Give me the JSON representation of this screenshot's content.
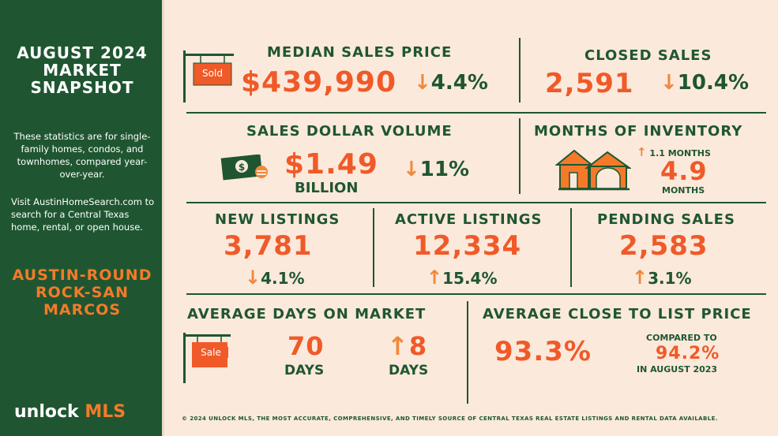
{
  "sidebar": {
    "title": "AUGUST 2024 MARKET SNAPSHOT",
    "description": "These statistics are for single-family homes, condos, and townhomes, compared year-over-year.",
    "visit": "Visit AustinHomeSearch.com to search for a Central Texas home, rental, or open house.",
    "area": "AUSTIN-ROUND ROCK-SAN MARCOS",
    "logo_unlock": "unlock",
    "logo_mls": "MLS"
  },
  "median": {
    "label": "MEDIAN SALES PRICE",
    "value": "$439,990",
    "change": "4.4%",
    "sign": "Sold",
    "direction": "down"
  },
  "closed": {
    "label": "CLOSED SALES",
    "value": "2,591",
    "change": "10.4%",
    "direction": "down"
  },
  "volume": {
    "label": "SALES DOLLAR VOLUME",
    "value": "$1.49",
    "unit": "BILLION",
    "change": "11%",
    "direction": "down"
  },
  "inventory": {
    "label": "MONTHS OF INVENTORY",
    "change": "1.1 MONTHS",
    "value": "4.9",
    "unit": "MONTHS",
    "direction": "up"
  },
  "new_listings": {
    "label": "NEW LISTINGS",
    "value": "3,781",
    "change": "4.1%",
    "direction": "down"
  },
  "active_listings": {
    "label": "ACTIVE LISTINGS",
    "value": "12,334",
    "change": "15.4%",
    "direction": "up"
  },
  "pending": {
    "label": "PENDING SALES",
    "value": "2,583",
    "change": "3.1%",
    "direction": "up"
  },
  "dom": {
    "label": "AVERAGE DAYS ON MARKET",
    "value": "70",
    "unit": "DAYS",
    "change": "8",
    "change_unit": "DAYS",
    "sign": "Sale",
    "direction": "up"
  },
  "close_list": {
    "label": "AVERAGE CLOSE TO LIST PRICE",
    "value": "93.3%",
    "compared_to": "COMPARED TO",
    "compare_value": "94.2%",
    "compare_period": "IN AUGUST 2023"
  },
  "footer": "© 2024 UNLOCK MLS, THE MOST ACCURATE, COMPREHENSIVE, AND TIMELY SOURCE  OF CENTRAL TEXAS REAL ESTATE LISTINGS AND RENTAL DATA AVAILABLE.",
  "icons": {
    "up": "up-arrow-icon",
    "down": "down-arrow-icon"
  },
  "colors": {
    "green": "#1f5631",
    "orange": "#f05a28",
    "background": "#fbe9dc"
  }
}
